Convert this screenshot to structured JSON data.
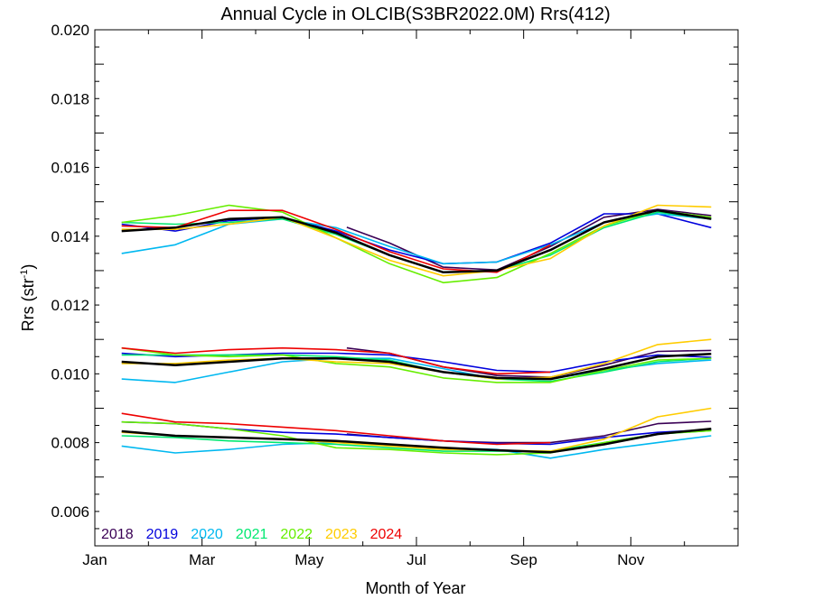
{
  "chart_data": {
    "type": "line",
    "title": "Annual Cycle in OLCIB(S3BR2022.0M) Rrs(412)",
    "xlabel": "Month of Year",
    "ylabel_main": "Rrs (str",
    "ylabel_sup": "-1",
    "ylabel_close": ")",
    "xlim": [
      1,
      13
    ],
    "ylim": [
      0.005,
      0.02
    ],
    "x_ticks": [
      {
        "value": 1,
        "label": "Jan"
      },
      {
        "value": 3,
        "label": "Mar"
      },
      {
        "value": 5,
        "label": "May"
      },
      {
        "value": 7,
        "label": "Jul"
      },
      {
        "value": 9,
        "label": "Sep"
      },
      {
        "value": 11,
        "label": "Nov"
      }
    ],
    "y_ticks": [
      "0.006",
      "0.008",
      "0.010",
      "0.012",
      "0.014",
      "0.016",
      "0.018",
      "0.020"
    ],
    "y_minor_step": 0.0005,
    "legend_position": "bottom-left",
    "series": [
      {
        "name": "2018",
        "color": "#3a0055",
        "groups": [
          {
            "x": [
              5.7,
              6.5,
              7.5,
              8.5,
              9.5,
              10.5,
              11.5,
              12.5
            ],
            "y": [
              0.01426,
              0.0138,
              0.0131,
              0.01302,
              0.0137,
              0.01455,
              0.01478,
              0.0146
            ]
          },
          {
            "x": [
              5.7,
              6.5,
              7.5,
              8.5,
              9.5,
              10.5,
              11.5,
              12.5
            ],
            "y": [
              0.01075,
              0.0106,
              0.0102,
              0.00995,
              0.0099,
              0.01025,
              0.01065,
              0.01068
            ]
          },
          {
            "x": [
              5.7,
              6.5,
              7.5,
              8.5,
              9.5,
              10.5,
              11.5,
              12.5
            ],
            "y": [
              0.00825,
              0.00815,
              0.00805,
              0.008,
              0.008,
              0.0082,
              0.00855,
              0.00862
            ]
          }
        ]
      },
      {
        "name": "2019",
        "color": "#0000dd",
        "groups": [
          {
            "x": [
              1.5,
              2.5,
              3.5,
              4.5,
              5.5,
              6.5,
              7.5,
              8.5,
              9.5,
              10.5,
              11.5,
              12.5
            ],
            "y": [
              0.01435,
              0.01415,
              0.01445,
              0.01455,
              0.01415,
              0.0136,
              0.0132,
              0.01325,
              0.0138,
              0.01465,
              0.01465,
              0.01425
            ]
          },
          {
            "x": [
              1.5,
              2.5,
              3.5,
              4.5,
              5.5,
              6.5,
              7.5,
              8.5,
              9.5,
              10.5,
              11.5,
              12.5
            ],
            "y": [
              0.0106,
              0.0105,
              0.01055,
              0.0106,
              0.0106,
              0.01055,
              0.01035,
              0.0101,
              0.01005,
              0.01035,
              0.01055,
              0.01048
            ]
          },
          {
            "x": [
              1.5,
              2.5,
              3.5,
              4.5,
              5.5,
              6.5,
              7.5,
              8.5,
              9.5,
              10.5,
              11.5,
              12.5
            ],
            "y": [
              0.0086,
              0.00855,
              0.0084,
              0.0083,
              0.00825,
              0.00815,
              0.00805,
              0.00798,
              0.00795,
              0.00815,
              0.0083,
              0.00838
            ]
          }
        ]
      },
      {
        "name": "2020",
        "color": "#00b8f0",
        "groups": [
          {
            "x": [
              1.5,
              2.5,
              3.5,
              4.5,
              5.5,
              6.5,
              7.5,
              8.5,
              9.5,
              10.5,
              11.5,
              12.5
            ],
            "y": [
              0.0135,
              0.01375,
              0.01435,
              0.0145,
              0.01425,
              0.0137,
              0.0132,
              0.01325,
              0.01375,
              0.0144,
              0.01465,
              0.0145
            ]
          },
          {
            "x": [
              1.5,
              2.5,
              3.5,
              4.5,
              5.5,
              6.5,
              7.5,
              8.5,
              9.5,
              10.5,
              11.5,
              12.5
            ],
            "y": [
              0.00985,
              0.00975,
              0.01005,
              0.01035,
              0.01045,
              0.01045,
              0.01015,
              0.00985,
              0.00985,
              0.0101,
              0.0103,
              0.0104
            ]
          },
          {
            "x": [
              1.5,
              2.5,
              3.5,
              4.5,
              5.5,
              6.5,
              7.5,
              8.5,
              9.5,
              10.5,
              11.5,
              12.5
            ],
            "y": [
              0.0079,
              0.0077,
              0.0078,
              0.00795,
              0.008,
              0.00795,
              0.00785,
              0.0078,
              0.00755,
              0.0078,
              0.008,
              0.0082
            ]
          }
        ]
      },
      {
        "name": "2021",
        "color": "#00e870",
        "groups": [
          {
            "x": [
              1.5,
              2.5,
              3.5,
              4.5,
              5.5,
              6.5,
              7.5,
              8.5,
              9.5,
              10.5,
              11.5,
              12.5
            ],
            "y": [
              0.0144,
              0.01435,
              0.0144,
              0.0145,
              0.01405,
              0.01345,
              0.01295,
              0.013,
              0.01345,
              0.01425,
              0.0147,
              0.0145
            ]
          },
          {
            "x": [
              1.5,
              2.5,
              3.5,
              4.5,
              5.5,
              6.5,
              7.5,
              8.5,
              9.5,
              10.5,
              11.5,
              12.5
            ],
            "y": [
              0.01055,
              0.01055,
              0.01055,
              0.01055,
              0.0105,
              0.0104,
              0.01005,
              0.00985,
              0.00978,
              0.01005,
              0.01035,
              0.01045
            ]
          },
          {
            "x": [
              1.5,
              2.5,
              3.5,
              4.5,
              5.5,
              6.5,
              7.5,
              8.5,
              9.5,
              10.5,
              11.5,
              12.5
            ],
            "y": [
              0.0082,
              0.00815,
              0.00805,
              0.008,
              0.00795,
              0.00785,
              0.00775,
              0.00775,
              0.00775,
              0.008,
              0.00825,
              0.00835
            ]
          }
        ]
      },
      {
        "name": "2022",
        "color": "#66ee00",
        "groups": [
          {
            "x": [
              1.5,
              2.5,
              3.5,
              4.5,
              5.5,
              6.5,
              7.5,
              8.5,
              9.5,
              10.5,
              11.5,
              12.5
            ],
            "y": [
              0.0144,
              0.0146,
              0.0149,
              0.0147,
              0.01395,
              0.0132,
              0.01265,
              0.0128,
              0.0135,
              0.0143,
              0.01475,
              0.01455
            ]
          },
          {
            "x": [
              1.5,
              2.5,
              3.5,
              4.5,
              5.5,
              6.5,
              7.5,
              8.5,
              9.5,
              10.5,
              11.5,
              12.5
            ],
            "y": [
              0.01075,
              0.01055,
              0.0105,
              0.01055,
              0.0103,
              0.0102,
              0.00988,
              0.00975,
              0.00975,
              0.0101,
              0.0104,
              0.01045
            ]
          },
          {
            "x": [
              1.5,
              2.5,
              3.5,
              4.5,
              5.5,
              6.5,
              7.5,
              8.5,
              9.5,
              10.5,
              11.5,
              12.5
            ],
            "y": [
              0.0086,
              0.00855,
              0.0084,
              0.0082,
              0.00785,
              0.0078,
              0.0077,
              0.00765,
              0.0077,
              0.008,
              0.00825,
              0.00835
            ]
          }
        ]
      },
      {
        "name": "2023",
        "color": "#ffcc00",
        "groups": [
          {
            "x": [
              1.5,
              2.5,
              3.5,
              4.5,
              5.5,
              6.5,
              7.5,
              8.5,
              9.5,
              10.5,
              11.5,
              12.5
            ],
            "y": [
              0.0142,
              0.0142,
              0.01435,
              0.01455,
              0.01395,
              0.0133,
              0.01285,
              0.013,
              0.01335,
              0.0143,
              0.0149,
              0.01485
            ]
          },
          {
            "x": [
              1.5,
              2.5,
              3.5,
              4.5,
              5.5,
              6.5,
              7.5,
              8.5,
              9.5,
              10.5,
              11.5,
              12.5
            ],
            "y": [
              0.0103,
              0.0103,
              0.0104,
              0.01045,
              0.01035,
              0.0103,
              0.01005,
              0.00985,
              0.0099,
              0.0103,
              0.01085,
              0.011
            ]
          },
          {
            "x": [
              1.5,
              2.5,
              3.5,
              4.5,
              5.5,
              6.5,
              7.5,
              8.5,
              9.5,
              10.5,
              11.5,
              12.5
            ],
            "y": [
              0.0083,
              0.0082,
              0.00815,
              0.0081,
              0.008,
              0.0079,
              0.0078,
              0.00778,
              0.00775,
              0.0081,
              0.00875,
              0.009
            ]
          }
        ]
      },
      {
        "name": "2024",
        "color": "#ee0000",
        "groups": [
          {
            "x": [
              1.5,
              2.5,
              3.5,
              4.5,
              5.5,
              6.5,
              7.5,
              8.5,
              9.5
            ],
            "y": [
              0.0143,
              0.01425,
              0.01475,
              0.01475,
              0.0142,
              0.01355,
              0.01305,
              0.01295,
              0.01375
            ]
          },
          {
            "x": [
              1.5,
              2.5,
              3.5,
              4.5,
              5.5,
              6.5,
              7.5,
              8.5,
              9.5
            ],
            "y": [
              0.01075,
              0.0106,
              0.0107,
              0.01075,
              0.0107,
              0.0106,
              0.0102,
              0.01,
              0.01005
            ]
          },
          {
            "x": [
              1.5,
              2.5,
              3.5,
              4.5,
              5.5,
              6.5,
              7.5,
              8.5,
              9.5
            ],
            "y": [
              0.00885,
              0.0086,
              0.00855,
              0.00845,
              0.00835,
              0.0082,
              0.00805,
              0.00795,
              0.008
            ]
          }
        ]
      },
      {
        "name": "",
        "color": "#000000",
        "width": 2.5,
        "groups": [
          {
            "x": [
              1.5,
              2.5,
              3.5,
              4.5,
              5.5,
              6.5,
              7.5,
              8.5,
              9.5,
              10.5,
              11.5,
              12.5
            ],
            "y": [
              0.01415,
              0.01425,
              0.0145,
              0.01455,
              0.0141,
              0.01345,
              0.01295,
              0.013,
              0.0136,
              0.0144,
              0.01475,
              0.0145
            ]
          },
          {
            "x": [
              1.5,
              2.5,
              3.5,
              4.5,
              5.5,
              6.5,
              7.5,
              8.5,
              9.5,
              10.5,
              11.5,
              12.5
            ],
            "y": [
              0.01035,
              0.01025,
              0.01035,
              0.01045,
              0.01045,
              0.01035,
              0.01005,
              0.00988,
              0.00985,
              0.01015,
              0.0105,
              0.01058
            ]
          },
          {
            "x": [
              1.5,
              2.5,
              3.5,
              4.5,
              5.5,
              6.5,
              7.5,
              8.5,
              9.5,
              10.5,
              11.5,
              12.5
            ],
            "y": [
              0.00833,
              0.0082,
              0.00815,
              0.0081,
              0.00805,
              0.00795,
              0.00785,
              0.00778,
              0.00772,
              0.00795,
              0.00825,
              0.0084
            ]
          }
        ]
      }
    ]
  }
}
